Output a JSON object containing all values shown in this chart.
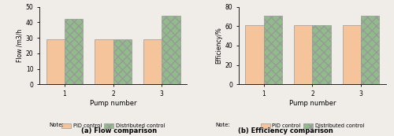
{
  "flow": {
    "pid": [
      29,
      29,
      29
    ],
    "distributed": [
      42,
      29,
      44
    ],
    "ylim": [
      0,
      50
    ],
    "yticks": [
      0,
      10,
      20,
      30,
      40,
      50
    ],
    "ylabel": "Flow /m3/h",
    "xlabel": "Pump number",
    "caption": "(a) Flow comparison"
  },
  "efficiency": {
    "pid": [
      61,
      61,
      61
    ],
    "distributed": [
      71,
      61,
      71
    ],
    "ylim": [
      0,
      80
    ],
    "yticks": [
      0,
      20,
      40,
      60,
      80
    ],
    "ylabel": "Efficiency/%",
    "xlabel": "Pump number",
    "caption": "(b) Efficiency comparison"
  },
  "pumps": [
    "1",
    "2",
    "3"
  ],
  "pid_color": "#F5C49A",
  "dist_color": "#90BC8A",
  "bar_width": 0.38,
  "note_label_pid": "PID control",
  "note_label_dist": "Distributed control",
  "note_prefix": "Note:",
  "figure_bgcolor": "#f0ede8"
}
